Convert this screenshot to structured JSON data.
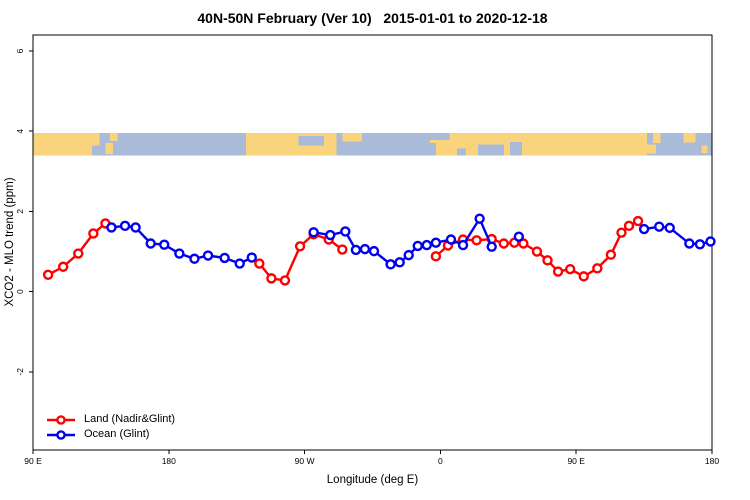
{
  "chart_data": {
    "type": "line",
    "title": "40N-50N February (Ver 10)   2015-01-01 to 2020-12-18",
    "xlabel": "Longitude (deg E)",
    "ylabel": "XCO2 - MLO trend (ppm)",
    "xlim": [
      90,
      540
    ],
    "ylim": [
      -3.95,
      6.4
    ],
    "grid": "off",
    "legend_position": "bottom-left",
    "x_ticks": [
      {
        "pos": 90,
        "label": "90 E"
      },
      {
        "pos": 180,
        "label": "180"
      },
      {
        "pos": 270,
        "label": "90 W"
      },
      {
        "pos": 360,
        "label": "0"
      },
      {
        "pos": 450,
        "label": "90 E"
      },
      {
        "pos": 540,
        "label": "180"
      }
    ],
    "y_ticks": [
      {
        "pos": 6,
        "label": "6"
      },
      {
        "pos": 4,
        "label": "4"
      },
      {
        "pos": 2,
        "label": "2"
      },
      {
        "pos": 0,
        "label": "0"
      },
      {
        "pos": -2,
        "label": "-2"
      }
    ],
    "series": [
      {
        "name": "Land (Nadir&Glint)",
        "color": "#ff0000",
        "marker": "open-circle",
        "points": [
          [
            100,
            0.42
          ],
          [
            110,
            0.62
          ],
          [
            120,
            0.95
          ],
          [
            130,
            1.45
          ],
          [
            138,
            1.7
          ],
          [
            240,
            0.7
          ],
          [
            248,
            0.33
          ],
          [
            257,
            0.28
          ],
          [
            267,
            1.13
          ],
          [
            276,
            1.43
          ],
          [
            286,
            1.3
          ],
          [
            295,
            1.05
          ],
          [
            357,
            0.88
          ],
          [
            365,
            1.15
          ],
          [
            375,
            1.3
          ],
          [
            384,
            1.28
          ],
          [
            394,
            1.31
          ],
          [
            402,
            1.2
          ],
          [
            409,
            1.22
          ],
          [
            415,
            1.2
          ],
          [
            424,
            1.0
          ],
          [
            431,
            0.78
          ],
          [
            438,
            0.5
          ],
          [
            446,
            0.56
          ],
          [
            455,
            0.38
          ],
          [
            464,
            0.58
          ],
          [
            473,
            0.92
          ],
          [
            480,
            1.47
          ],
          [
            485,
            1.64
          ],
          [
            491,
            1.76
          ]
        ]
      },
      {
        "name": "Ocean (Glint)",
        "color": "#0000ee",
        "marker": "open-circle",
        "points": [
          [
            142,
            1.6
          ],
          [
            151,
            1.64
          ],
          [
            158,
            1.6
          ],
          [
            168,
            1.2
          ],
          [
            177,
            1.17
          ],
          [
            187,
            0.95
          ],
          [
            197,
            0.82
          ],
          [
            206,
            0.9
          ],
          [
            217,
            0.84
          ],
          [
            227,
            0.7
          ],
          [
            235,
            0.85
          ],
          [
            276,
            1.48
          ],
          [
            287,
            1.41
          ],
          [
            297,
            1.5
          ],
          [
            304,
            1.04
          ],
          [
            310,
            1.06
          ],
          [
            316,
            1.01
          ],
          [
            327,
            0.68
          ],
          [
            333,
            0.73
          ],
          [
            339,
            0.91
          ],
          [
            345,
            1.14
          ],
          [
            351,
            1.16
          ],
          [
            357,
            1.22
          ],
          [
            367,
            1.3
          ],
          [
            375,
            1.16
          ],
          [
            386,
            1.82
          ],
          [
            394,
            1.12
          ],
          [
            412,
            1.37
          ],
          [
            495,
            1.56
          ],
          [
            505,
            1.62
          ],
          [
            512,
            1.59
          ],
          [
            525,
            1.2
          ],
          [
            532,
            1.18
          ],
          [
            539,
            1.25
          ]
        ]
      }
    ],
    "map_strip": {
      "y_range": [
        3.4,
        3.95
      ],
      "land_color": "#f9d47c",
      "ocean_color": "#a9bbd8",
      "oceans": [
        {
          "l": 129,
          "r": 134,
          "t": 0.55,
          "b": 1
        },
        {
          "l": 134,
          "r": 231,
          "t": 0,
          "b": 1
        },
        {
          "l": 266,
          "r": 283,
          "t": 0.12,
          "b": 0.55
        },
        {
          "l": 291,
          "r": 353,
          "t": 0,
          "b": 1
        },
        {
          "l": 353,
          "r": 366,
          "t": 0,
          "b": 0.3
        },
        {
          "l": 351,
          "r": 357,
          "t": 0.45,
          "b": 1
        },
        {
          "l": 371,
          "r": 377,
          "t": 0.7,
          "b": 1
        },
        {
          "l": 385,
          "r": 402,
          "t": 0.5,
          "b": 1
        },
        {
          "l": 406,
          "r": 414,
          "t": 0.4,
          "b": 1
        },
        {
          "l": 497,
          "r": 540,
          "t": 0,
          "b": 1
        }
      ],
      "islands": [
        {
          "l": 138,
          "r": 143,
          "t": 0.45,
          "b": 0.95
        },
        {
          "l": 141,
          "r": 146,
          "t": 0,
          "b": 0.35
        },
        {
          "l": 295,
          "r": 308,
          "t": 0,
          "b": 0.38
        },
        {
          "l": 497,
          "r": 503,
          "t": 0.5,
          "b": 0.92
        },
        {
          "l": 501,
          "r": 506,
          "t": 0,
          "b": 0.45
        },
        {
          "l": 521,
          "r": 529,
          "t": 0,
          "b": 0.42
        },
        {
          "l": 533,
          "r": 537,
          "t": 0.55,
          "b": 0.9
        }
      ]
    }
  }
}
